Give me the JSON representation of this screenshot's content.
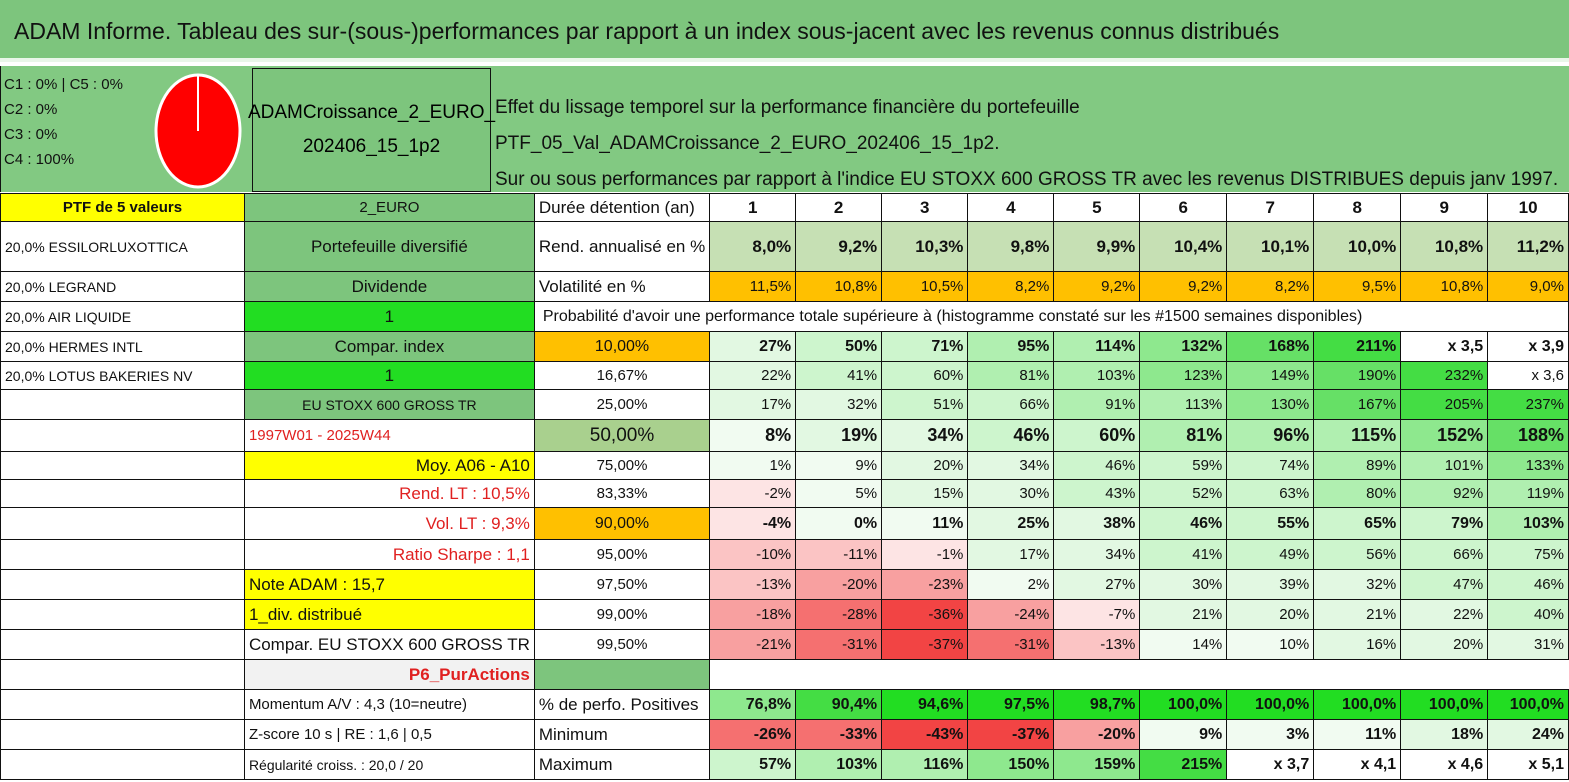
{
  "title": "ADAM Informe. Tableau des sur-(sous-)performances par rapport à un index sous-jacent avec les revenus connus distribués",
  "legend": [
    "C1 : 0% | C5 : 0%",
    "C2 : 0%",
    "C3 : 0%",
    "C4 : 100%"
  ],
  "pie": {
    "c4_share": 100,
    "color": "#ff0000"
  },
  "portfolio_name_lines": [
    "ADAMCroissance_2_EURO_",
    "202406_15_1p2"
  ],
  "description_lines": [
    "Effet du lissage temporel sur la performance financière du portefeuille PTF_05_Val_ADAMCroissance_2_EURO_202406_15_1p2.",
    "Sur ou sous performances par rapport à l'indice EU STOXX 600 GROSS TR avec les revenus DISTRIBUES depuis janv 1997."
  ],
  "holdings": [
    "20,0% ESSILORLUXOTTICA",
    "20,0% LEGRAND",
    "20,0% AIR LIQUIDE",
    "20,0% HERMES INTL",
    "20,0% LOTUS BAKERIES NV"
  ],
  "ptf_header": "PTF de 5 valeurs",
  "col1": {
    "code": "2_EURO",
    "type": "Portefeuille diversifié",
    "dividend": "Dividende",
    "val1": "1",
    "compar": "Compar. index",
    "val2": "1",
    "index_name": "EU STOXX 600 GROSS TR",
    "period": "1997W01 - 2025W44",
    "moy": "Moy. A06 - A10",
    "rend": "Rend. LT : 10,5%",
    "vol": "Vol. LT : 9,3%",
    "sharpe": "Ratio Sharpe : 1,1",
    "note": "Note ADAM : 15,7",
    "div": "1_div. distribué",
    "compar_full": "Compar. EU STOXX 600 GROSS TR",
    "p6": "P6_PurActions",
    "momentum": "Momentum A/V : 4,3 (10=neutre)",
    "zscore": "Z-score 10 s | RE : 1,6 | 0,5",
    "regularite": "Régularité croiss. : 20,0 / 20"
  },
  "labels": {
    "duree": "Durée détention (an)",
    "rend": "Rend. annualisé en %",
    "vol": "Volatilité en %",
    "proba": "Probabilité d'avoir une performance totale supérieure à (histogramme constaté sur les #1500 semaines disponibles)",
    "positives": "% de perfo. Positives",
    "minimum": "Minimum",
    "maximum": "Maximum"
  },
  "years": [
    "1",
    "2",
    "3",
    "4",
    "5",
    "6",
    "7",
    "8",
    "9",
    "10"
  ],
  "rendement": [
    "8,0%",
    "9,2%",
    "10,3%",
    "9,8%",
    "9,9%",
    "10,4%",
    "10,1%",
    "10,0%",
    "10,8%",
    "11,2%"
  ],
  "volatilite": [
    "11,5%",
    "10,8%",
    "10,5%",
    "8,2%",
    "9,2%",
    "9,2%",
    "8,2%",
    "9,5%",
    "10,8%",
    "9,0%"
  ],
  "percentiles": [
    {
      "p": "10,00%",
      "v": [
        "27%",
        "50%",
        "71%",
        "95%",
        "114%",
        "132%",
        "168%",
        "211%",
        "x 3,5",
        "x 3,9"
      ]
    },
    {
      "p": "16,67%",
      "v": [
        "22%",
        "41%",
        "60%",
        "81%",
        "103%",
        "123%",
        "149%",
        "190%",
        "232%",
        "x 3,6"
      ]
    },
    {
      "p": "25,00%",
      "v": [
        "17%",
        "32%",
        "51%",
        "66%",
        "91%",
        "113%",
        "130%",
        "167%",
        "205%",
        "237%"
      ]
    },
    {
      "p": "50,00%",
      "v": [
        "8%",
        "19%",
        "34%",
        "46%",
        "60%",
        "81%",
        "96%",
        "115%",
        "152%",
        "188%"
      ]
    },
    {
      "p": "75,00%",
      "v": [
        "1%",
        "9%",
        "20%",
        "34%",
        "46%",
        "59%",
        "74%",
        "89%",
        "101%",
        "133%"
      ]
    },
    {
      "p": "83,33%",
      "v": [
        "-2%",
        "5%",
        "15%",
        "30%",
        "43%",
        "52%",
        "63%",
        "80%",
        "92%",
        "119%"
      ]
    },
    {
      "p": "90,00%",
      "v": [
        "-4%",
        "0%",
        "11%",
        "25%",
        "38%",
        "46%",
        "55%",
        "65%",
        "79%",
        "103%"
      ]
    },
    {
      "p": "95,00%",
      "v": [
        "-10%",
        "-11%",
        "-1%",
        "17%",
        "34%",
        "41%",
        "49%",
        "56%",
        "66%",
        "75%"
      ]
    },
    {
      "p": "97,50%",
      "v": [
        "-13%",
        "-20%",
        "-23%",
        "2%",
        "27%",
        "30%",
        "39%",
        "32%",
        "47%",
        "46%"
      ]
    },
    {
      "p": "99,00%",
      "v": [
        "-18%",
        "-28%",
        "-36%",
        "-24%",
        "-7%",
        "21%",
        "20%",
        "21%",
        "22%",
        "40%"
      ]
    },
    {
      "p": "99,50%",
      "v": [
        "-21%",
        "-31%",
        "-37%",
        "-31%",
        "-13%",
        "14%",
        "10%",
        "16%",
        "20%",
        "31%"
      ]
    }
  ],
  "positives": [
    "76,8%",
    "90,4%",
    "94,6%",
    "97,5%",
    "98,7%",
    "100,0%",
    "100,0%",
    "100,0%",
    "100,0%",
    "100,0%"
  ],
  "minimum": [
    "-26%",
    "-33%",
    "-43%",
    "-37%",
    "-20%",
    "9%",
    "3%",
    "11%",
    "18%",
    "24%"
  ],
  "maximum": [
    "57%",
    "103%",
    "116%",
    "150%",
    "159%",
    "215%",
    "x 3,7",
    "x 4,1",
    "x 4,6",
    "x 5,1"
  ],
  "colors": {
    "header_green": "#7dc57d",
    "yellow": "#ffff00",
    "bright_green": "#22dd22",
    "orange": "#ffc000",
    "light_gray": "#f2f2f2",
    "rend_green": "#c6e0b4",
    "red_text": "#e02020"
  }
}
